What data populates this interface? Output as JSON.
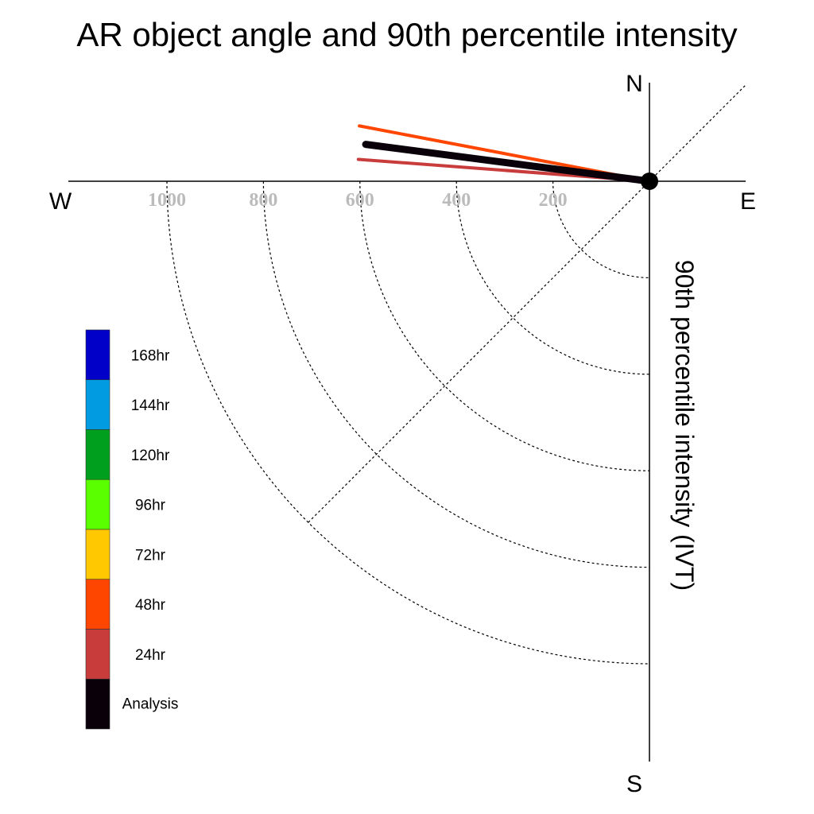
{
  "chart_data": {
    "type": "polar-quadrant",
    "title": "AR object angle and 90th percentile intensity",
    "radial_axis_label": "90th percentile intensity (IVT)",
    "directions": {
      "north": "N",
      "south": "S",
      "east": "E",
      "west": "W"
    },
    "radial_ticks": [
      200,
      400,
      600,
      800,
      1000
    ],
    "radial_max": 1000,
    "grid": true,
    "legend_position": "left",
    "legend": [
      {
        "label": "168hr",
        "color": "#0000c8"
      },
      {
        "label": "144hr",
        "color": "#009be1"
      },
      {
        "label": "120hr",
        "color": "#00a01e"
      },
      {
        "label": "96hr",
        "color": "#5aff00"
      },
      {
        "label": "72hr",
        "color": "#ffc800"
      },
      {
        "label": "48hr",
        "color": "#ff4600"
      },
      {
        "label": "24hr",
        "color": "#c83c3c"
      },
      {
        "label": "Analysis",
        "color": "#0a000a"
      }
    ],
    "series": [
      {
        "name": "24hr",
        "color": "#c83c3c",
        "angle_deg_north_of_west": 4.3,
        "intensity": 605
      },
      {
        "name": "48hr",
        "color": "#ff4600",
        "angle_deg_north_of_west": 10.8,
        "intensity": 612
      },
      {
        "name": "Analysis",
        "color": "#0a000a",
        "angle_deg_north_of_west": 7.4,
        "intensity": 593
      }
    ]
  }
}
